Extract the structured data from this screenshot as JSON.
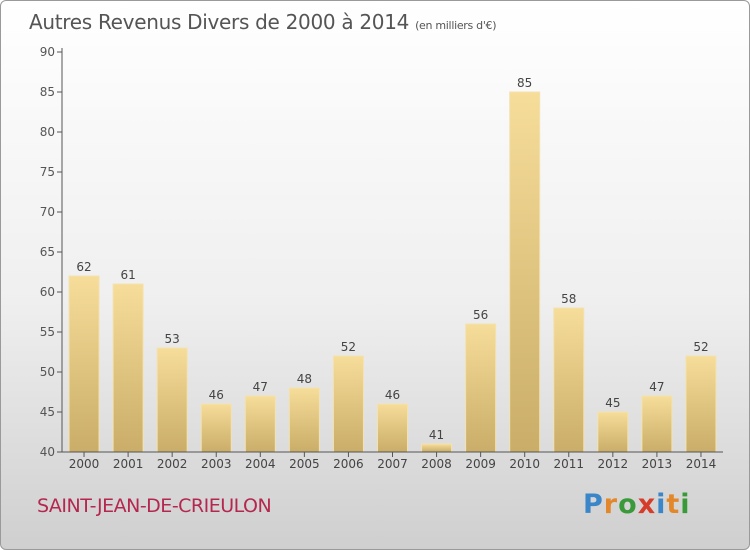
{
  "title": "Autres Revenus Divers de 2000 à 2014",
  "subtitle": "(en milliers d'€)",
  "commune": "SAINT-JEAN-DE-CRIEULON",
  "logo": {
    "letters": [
      "P",
      "r",
      "o",
      "x",
      "i",
      "t",
      "i"
    ],
    "colors": [
      "#3a86c8",
      "#e3882a",
      "#3a9a3a",
      "#d63c2a",
      "#3a86c8",
      "#e3882a",
      "#3a9a3a"
    ]
  },
  "chart_data": {
    "type": "bar",
    "categories": [
      "2000",
      "2001",
      "2002",
      "2003",
      "2004",
      "2005",
      "2006",
      "2007",
      "2008",
      "2009",
      "2010",
      "2011",
      "2012",
      "2013",
      "2014"
    ],
    "values": [
      62,
      61,
      53,
      46,
      47,
      48,
      52,
      46,
      41,
      56,
      85,
      58,
      45,
      47,
      52
    ],
    "data_labels": [
      "62",
      "61",
      "53",
      "46",
      "47",
      "48",
      "52",
      "46",
      "41",
      "56",
      "85",
      "58",
      "45",
      "47",
      "52"
    ],
    "yticks": [
      "40",
      "45",
      "50",
      "55",
      "60",
      "65",
      "70",
      "75",
      "80",
      "85",
      "90"
    ],
    "ylim": [
      40,
      90
    ],
    "grid": false,
    "bar_color": "#e9cd86"
  }
}
